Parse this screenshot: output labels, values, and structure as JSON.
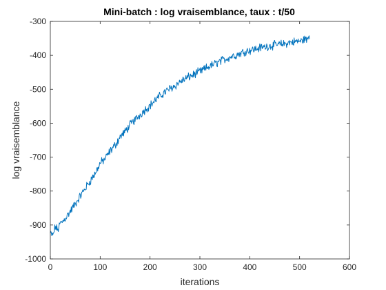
{
  "chart_data": {
    "type": "line",
    "title": "Mini-batch : log vraisemblance, taux : t/50",
    "xlabel": "iterations",
    "ylabel": "log vraisemblance",
    "xlim": [
      0,
      600
    ],
    "ylim": [
      -1000,
      -300
    ],
    "xticks": [
      0,
      100,
      200,
      300,
      400,
      500,
      600
    ],
    "yticks": [
      -1000,
      -900,
      -800,
      -700,
      -600,
      -500,
      -400,
      -300
    ],
    "xtick_labels": [
      "0",
      "100",
      "200",
      "300",
      "400",
      "500",
      "600"
    ],
    "ytick_labels": [
      "-1000",
      "-900",
      "-800",
      "-700",
      "-600",
      "-500",
      "-400",
      "-300"
    ],
    "grid": false,
    "box": true,
    "series": [
      {
        "color": "#0072BD",
        "x": [
          0,
          5,
          10,
          15,
          20,
          25,
          30,
          40,
          50,
          60,
          70,
          80,
          90,
          100,
          110,
          120,
          130,
          140,
          150,
          160,
          170,
          180,
          190,
          200,
          210,
          220,
          230,
          240,
          250,
          260,
          270,
          280,
          290,
          300,
          310,
          320,
          330,
          340,
          350,
          360,
          370,
          380,
          390,
          400,
          410,
          420,
          430,
          440,
          450,
          460,
          470,
          480,
          490,
          500,
          505,
          510,
          515,
          520
        ],
        "y": [
          -925,
          -932,
          -905,
          -915,
          -895,
          -890,
          -880,
          -860,
          -838,
          -815,
          -792,
          -770,
          -748,
          -718,
          -705,
          -682,
          -665,
          -640,
          -625,
          -605,
          -590,
          -575,
          -560,
          -548,
          -533,
          -520,
          -508,
          -498,
          -490,
          -478,
          -470,
          -462,
          -455,
          -448,
          -440,
          -432,
          -425,
          -418,
          -412,
          -405,
          -400,
          -395,
          -388,
          -385,
          -382,
          -378,
          -375,
          -372,
          -370,
          -368,
          -366,
          -362,
          -360,
          -358,
          -358,
          -350,
          -356,
          -340
        ]
      }
    ],
    "noise_amplitude": 10
  }
}
